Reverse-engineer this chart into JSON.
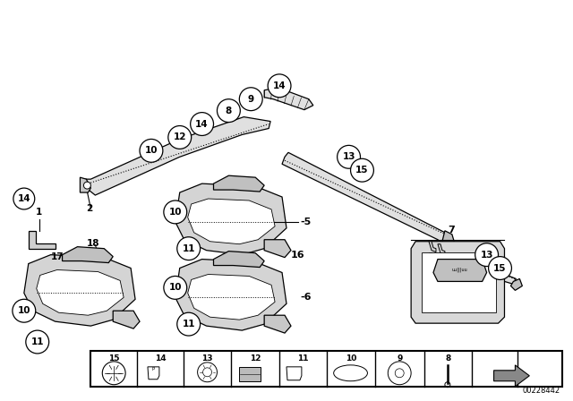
{
  "background_color": "#ffffff",
  "figsize": [
    6.4,
    4.48
  ],
  "dpi": 100,
  "part_number": "00228442"
}
